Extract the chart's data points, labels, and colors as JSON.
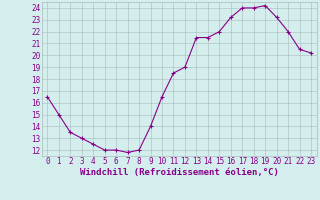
{
  "x": [
    0,
    1,
    2,
    3,
    4,
    5,
    6,
    7,
    8,
    9,
    10,
    11,
    12,
    13,
    14,
    15,
    16,
    17,
    18,
    19,
    20,
    21,
    22,
    23
  ],
  "y": [
    16.5,
    15.0,
    13.5,
    13.0,
    12.5,
    12.0,
    12.0,
    11.8,
    12.0,
    14.0,
    16.5,
    18.5,
    19.0,
    21.5,
    21.5,
    22.0,
    23.2,
    24.0,
    24.0,
    24.2,
    23.2,
    22.0,
    20.5,
    20.2
  ],
  "line_color": "#880088",
  "marker": "+",
  "marker_size": 3,
  "linewidth": 0.8,
  "xlabel": "Windchill (Refroidissement éolien,°C)",
  "xlabel_fontsize": 6.5,
  "ylabel_ticks": [
    12,
    13,
    14,
    15,
    16,
    17,
    18,
    19,
    20,
    21,
    22,
    23,
    24
  ],
  "xtick_labels": [
    "0",
    "1",
    "2",
    "3",
    "4",
    "5",
    "6",
    "7",
    "8",
    "9",
    "10",
    "11",
    "12",
    "13",
    "14",
    "15",
    "16",
    "17",
    "18",
    "19",
    "20",
    "21",
    "22",
    "23"
  ],
  "xlim": [
    -0.5,
    23.5
  ],
  "ylim": [
    11.5,
    24.5
  ],
  "bg_color": "#d4eeee",
  "grid_color": "#aabbbb",
  "tick_fontsize": 5.5
}
